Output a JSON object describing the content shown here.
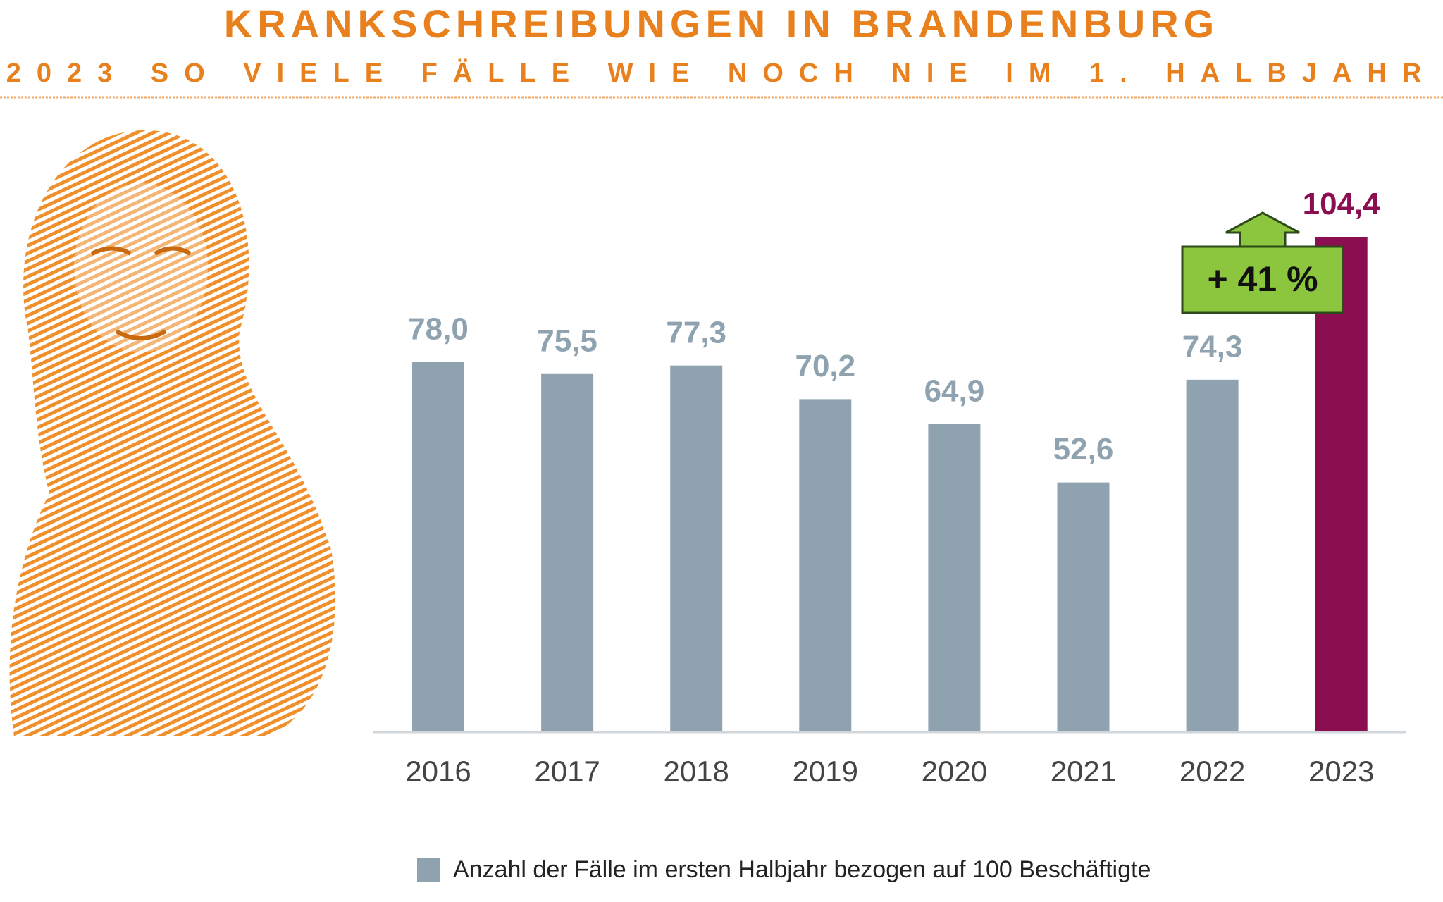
{
  "chart_data": {
    "type": "bar",
    "title": "KRANKSCHREIBUNGEN IN BRANDENBURG",
    "subtitle": "2023 SO VIELE FÄLLE WIE NOCH NIE IM 1. HALBJAHR",
    "categories": [
      "2016",
      "2017",
      "2018",
      "2019",
      "2020",
      "2021",
      "2022",
      "2023"
    ],
    "series": [
      {
        "name": "Anzahl der Fälle im ersten Halbjahr bezogen auf 100 Beschäftigte",
        "color": "#8fa2af",
        "colors": [
          "#8fa2af",
          "#8fa2af",
          "#8fa2af",
          "#8fa2af",
          "#8fa2af",
          "#8fa2af",
          "#8fa2af",
          "#8b0f50"
        ],
        "values": [
          78.0,
          75.5,
          77.3,
          70.2,
          64.9,
          52.6,
          74.3,
          104.4
        ],
        "value_labels": [
          "78,0",
          "75,5",
          "77,3",
          "70,2",
          "64,9",
          "52,6",
          "74,3",
          "104,4"
        ]
      }
    ],
    "annotation": "+ 41 %",
    "ylim": [
      0,
      110
    ]
  }
}
